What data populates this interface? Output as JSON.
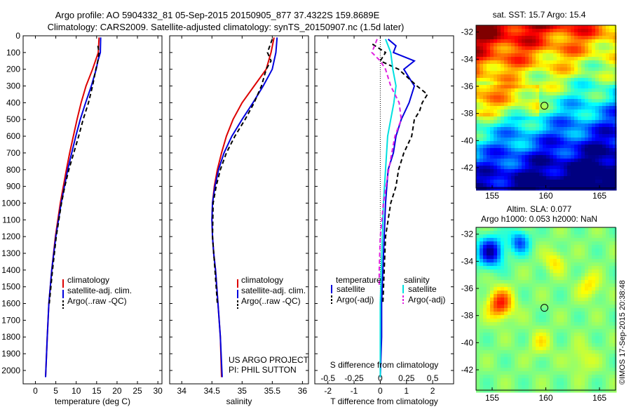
{
  "title_line1": "Argo profile: AO 5904332_81 05-Sep-2015 20150905_877 37.4322S 159.8689E",
  "title_line2": "Climatology: CARS2009. Satellite-adjusted climatology: synTS_20150907.nc (1.5d later)",
  "project_label": "US ARGO PROJECT",
  "pi_label": "PI: PHIL SUTTON",
  "sst_title": "sat. SST: 15.7  Argo: 15.4",
  "altim_title1": "Altim. SLA: 0.077",
  "altim_title2": "Argo h1000: 0.053  h2000: NaN",
  "watermark": "©IMOS 17-Sep-2015 20:38:48",
  "colors": {
    "climatology": "#dd0000",
    "satellite": "#0000dd",
    "argo": "#000000",
    "sal_satellite": "#00e0e0",
    "sal_argo": "#e020e0"
  },
  "legend_profiles": {
    "clim": "climatology",
    "sat": "satellite-adj. clim.",
    "argo": "Argo(..raw -QC)"
  },
  "legend_diff": {
    "temp_head": "temperature",
    "sal_head": "salinity",
    "t_sat": "satellite",
    "t_argo": "Argo(-adj)",
    "s_sat": "satellite",
    "s_argo": "Argo(-adj)"
  },
  "chart_data": [
    {
      "type": "line",
      "xlabel": "temperature (deg C)",
      "ylabel": "",
      "xlim": [
        -3,
        31
      ],
      "ylim": [
        2080,
        0
      ],
      "xticks": [
        0,
        5,
        10,
        15,
        20,
        25,
        30
      ],
      "yticks": [
        0,
        100,
        200,
        300,
        400,
        500,
        600,
        700,
        800,
        900,
        1000,
        1100,
        1200,
        1300,
        1400,
        1500,
        1600,
        1700,
        1800,
        1900,
        2000
      ],
      "series": [
        {
          "name": "climatology",
          "color": "#dd0000",
          "style": "solid",
          "depth": [
            10,
            100,
            200,
            300,
            400,
            500,
            600,
            700,
            800,
            1000,
            1200,
            1400,
            1600,
            1800,
            2040
          ],
          "values": [
            15.6,
            15.4,
            14.0,
            12.4,
            11.2,
            10.2,
            9.3,
            8.4,
            7.6,
            6.1,
            4.9,
            4.0,
            3.3,
            2.9,
            2.5
          ]
        },
        {
          "name": "satellite-adj. clim.",
          "color": "#0000dd",
          "style": "solid",
          "depth": [
            10,
            100,
            150,
            200,
            300,
            400,
            500,
            600,
            700,
            800,
            1000,
            1200,
            1400,
            1600,
            1800,
            2040
          ],
          "values": [
            16.0,
            15.9,
            15.3,
            14.9,
            13.7,
            12.3,
            11.0,
            9.9,
            8.9,
            7.9,
            6.3,
            5.0,
            4.0,
            3.3,
            2.9,
            2.5
          ]
        },
        {
          "name": "Argo(..raw -QC)",
          "color": "#000000",
          "style": "dashed",
          "depth": [
            60,
            100,
            150,
            200,
            300,
            400,
            500,
            600,
            700,
            800,
            900,
            1000,
            1200,
            1400,
            1600
          ],
          "values": [
            15.3,
            15.6,
            15.3,
            14.8,
            14.0,
            13.0,
            11.7,
            10.6,
            9.4,
            8.2,
            7.2,
            6.4,
            5.1,
            4.2,
            3.4
          ]
        }
      ]
    },
    {
      "type": "line",
      "xlabel": "salinity",
      "ylabel": "",
      "xlim": [
        33.8,
        36.1
      ],
      "ylim": [
        2080,
        0
      ],
      "xticks": [
        34,
        34.5,
        35,
        35.5,
        36
      ],
      "series": [
        {
          "name": "climatology",
          "color": "#dd0000",
          "style": "solid",
          "depth": [
            10,
            100,
            200,
            300,
            400,
            500,
            600,
            700,
            800,
            900,
            1000,
            1100,
            1200,
            1300,
            1400,
            1600,
            1800,
            2040
          ],
          "values": [
            35.53,
            35.48,
            35.4,
            35.2,
            35.0,
            34.85,
            34.74,
            34.66,
            34.59,
            34.54,
            34.51,
            34.5,
            34.51,
            34.53,
            34.56,
            34.6,
            34.64,
            34.66
          ]
        },
        {
          "name": "satellite-adj. clim.",
          "color": "#0000dd",
          "style": "solid",
          "depth": [
            10,
            100,
            200,
            300,
            400,
            500,
            600,
            700,
            800,
            900,
            1000,
            1100,
            1200,
            1300,
            1400,
            1600,
            1800,
            2040
          ],
          "values": [
            35.58,
            35.56,
            35.5,
            35.35,
            35.18,
            35.0,
            34.83,
            34.7,
            34.61,
            34.55,
            34.51,
            34.5,
            34.51,
            34.53,
            34.56,
            34.6,
            34.64,
            34.67
          ]
        },
        {
          "name": "Argo(..raw -QC)",
          "color": "#000000",
          "style": "dashed",
          "depth": [
            20,
            100,
            150,
            200,
            300,
            400,
            500,
            600,
            700,
            800,
            900,
            1000,
            1200,
            1400,
            1600
          ],
          "values": [
            35.5,
            35.42,
            35.48,
            35.4,
            35.32,
            35.2,
            35.05,
            34.88,
            34.74,
            34.64,
            34.57,
            34.52,
            34.51,
            34.55,
            34.59
          ]
        }
      ]
    },
    {
      "type": "line",
      "xlabel": "T difference from climatology",
      "top_xlabel": "S difference from climatology",
      "ylabel": "",
      "xlim": [
        -2.5,
        2.8
      ],
      "ylim": [
        2080,
        0
      ],
      "xticks": [
        -2,
        -1,
        0,
        1,
        2
      ],
      "top_xticks": [
        -0.5,
        -0.25,
        0,
        0.25,
        0.5
      ],
      "series": [
        {
          "name": "temperature satellite",
          "color": "#0000dd",
          "style": "solid",
          "depth": [
            20,
            60,
            100,
            150,
            200,
            300,
            400,
            500,
            600,
            700,
            800,
            900,
            1000,
            1200,
            1400,
            1600,
            1800,
            2040
          ],
          "values": [
            0.3,
            0.6,
            0.5,
            1.3,
            0.9,
            1.3,
            1.1,
            0.8,
            0.6,
            0.5,
            0.3,
            0.25,
            0.2,
            0.15,
            0.1,
            0.05,
            0.05,
            0.0
          ]
        },
        {
          "name": "temperature Argo(-adj)",
          "color": "#000000",
          "style": "dashed",
          "depth": [
            50,
            100,
            150,
            200,
            300,
            350,
            400,
            450,
            500,
            600,
            700,
            800,
            900,
            1000,
            1200,
            1400,
            1600
          ],
          "values": [
            -0.3,
            0.2,
            0.0,
            0.7,
            1.4,
            1.8,
            1.6,
            1.5,
            1.3,
            1.2,
            0.9,
            0.7,
            0.6,
            0.4,
            0.2,
            0.15,
            0.1
          ]
        },
        {
          "name": "salinity satellite",
          "color": "#00e0e0",
          "style": "solid",
          "depth": [
            20,
            100,
            200,
            300,
            400,
            500,
            600,
            800,
            1000,
            1200,
            1400,
            1600,
            1800,
            2040
          ],
          "values": [
            0.05,
            0.1,
            0.12,
            0.15,
            0.13,
            0.1,
            0.07,
            0.05,
            0.03,
            0.02,
            0.01,
            0.0,
            0.0,
            0.0
          ]
        },
        {
          "name": "salinity Argo(-adj)",
          "color": "#e020e0",
          "style": "dashed",
          "depth": [
            20,
            100,
            150,
            200,
            300,
            400,
            500,
            600,
            800,
            1000,
            1200,
            1400,
            1500
          ],
          "values": [
            -0.03,
            -0.08,
            0.0,
            0.05,
            0.1,
            0.18,
            0.2,
            0.14,
            0.08,
            0.03,
            0.0,
            -0.01,
            -0.01
          ]
        }
      ]
    },
    {
      "type": "heatmap",
      "title": "sat. SST: 15.7  Argo: 15.4",
      "xlim": [
        153.5,
        166.5
      ],
      "ylim": [
        -43.5,
        -31.5
      ],
      "xticks": [
        155,
        160,
        165
      ],
      "yticks": [
        -32,
        -34,
        -36,
        -38,
        -40,
        -42
      ],
      "marker": {
        "lon": 159.87,
        "lat": -37.43
      }
    },
    {
      "type": "heatmap",
      "title": "Altim. SLA: 0.077",
      "xlim": [
        153.5,
        166.5
      ],
      "ylim": [
        -43.5,
        -31.5
      ],
      "xticks": [
        155,
        160,
        165
      ],
      "yticks": [
        -32,
        -34,
        -36,
        -38,
        -40,
        -42
      ],
      "marker": {
        "lon": 159.87,
        "lat": -37.43
      }
    }
  ]
}
